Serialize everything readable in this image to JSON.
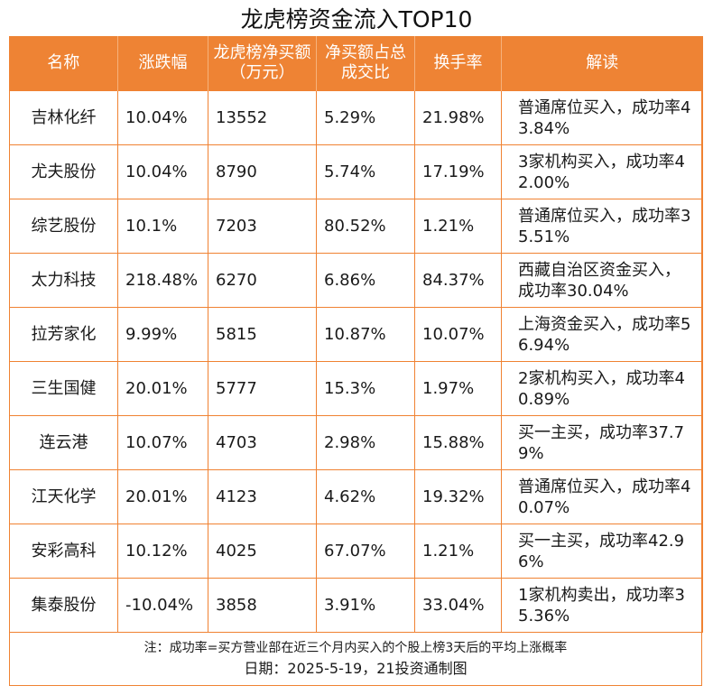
{
  "title": "龙虎榜资金流入TOP10",
  "headers": [
    "名称",
    "涨跌幅",
    "龙虎榜净买额（万元）",
    "净买额占总成交比",
    "换手率",
    "解读"
  ],
  "rows": [
    [
      "吉林化纤",
      "10.04%",
      "13552",
      "5.29%",
      "21.98%",
      "普通席位买入，成功率43.84%"
    ],
    [
      "尤夫股份",
      "10.04%",
      "8790",
      "5.74%",
      "17.19%",
      "3家机构买入，成功率42.00%"
    ],
    [
      "综艺股份",
      "10.1%",
      "7203",
      "80.52%",
      "1.21%",
      "普通席位买入，成功率35.51%"
    ],
    [
      "太力科技",
      "218.48%",
      "6270",
      "6.86%",
      "84.37%",
      "西藏自治区资金买入，成功率30.04%"
    ],
    [
      "拉芳家化",
      "9.99%",
      "5815",
      "10.87%",
      "10.07%",
      "上海资金买入，成功率56.94%"
    ],
    [
      "三生国健",
      "20.01%",
      "5777",
      "15.3%",
      "1.97%",
      "2家机构买入，成功率40.89%"
    ],
    [
      "连云港",
      "10.07%",
      "4703",
      "2.98%",
      "15.88%",
      "买一主买，成功率37.79%"
    ],
    [
      "江天化学",
      "20.01%",
      "4123",
      "4.62%",
      "19.32%",
      "普通席位买入，成功率40.07%"
    ],
    [
      "安彩高科",
      "10.12%",
      "4025",
      "67.07%",
      "1.21%",
      "买一主买，成功率42.96%"
    ],
    [
      "集泰股份",
      "-10.04%",
      "3858",
      "3.91%",
      "33.04%",
      "1家机构卖出，成功率35.36%"
    ]
  ],
  "footnote": "注：成功率=买方营业部在近三个月内买入的个股上榜3天后的平均上涨概率",
  "date_line": "日期：2025-5-19，21投资通制图",
  "colors": {
    "header_bg": "#ee8334",
    "border": "#f08232",
    "header_text": "#ffffff"
  }
}
